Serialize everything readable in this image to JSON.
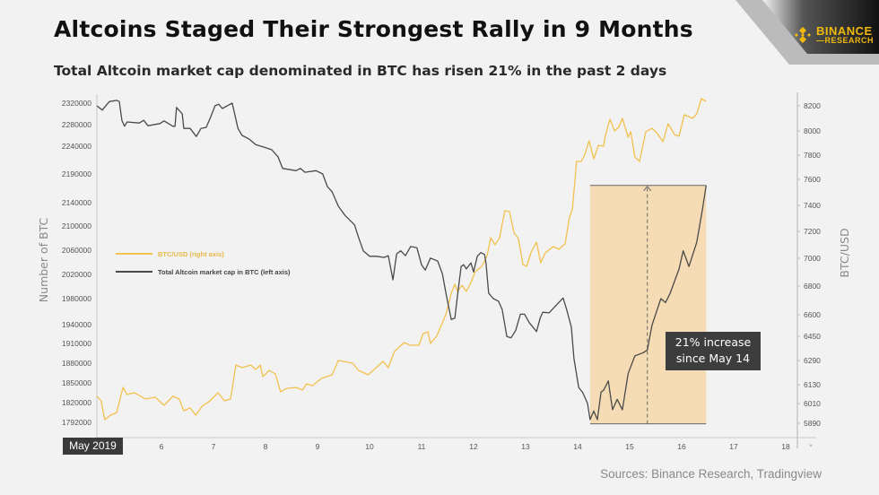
{
  "header": {
    "title": "Altcoins Staged Their Strongest Rally in 9 Months",
    "subtitle": "Total Altcoin market cap denominated in BTC has risen 21% in the past 2 days"
  },
  "logo": {
    "line1": "BINANCE",
    "line2": "RESEARCH",
    "color": "#f0b90b"
  },
  "source": "Sources: Binance Research, Tradingview",
  "chart_data": {
    "type": "line",
    "title": "",
    "x_month_label": "May 2019",
    "x_ticks": [
      "6",
      "7",
      "8",
      "9",
      "10",
      "11",
      "12",
      "13",
      "14",
      "15",
      "16",
      "17",
      "18"
    ],
    "x_extra_tick": "*",
    "ylabel_left": "Number of BTC",
    "ylabel_right": "BTC/USD",
    "y_left_ticks": [
      2320000,
      2280000,
      2240000,
      2190000,
      2140000,
      2100000,
      2060000,
      2020000,
      1980000,
      1940000,
      1910000,
      1880000,
      1850000,
      1820000,
      1792000
    ],
    "y_right_ticks": [
      8200,
      8000,
      7800,
      7600,
      7400,
      7200,
      7000,
      6800,
      6600,
      6450,
      6290,
      6130,
      6010,
      5890
    ],
    "grid": false,
    "legend_placement": "middle-left",
    "series": [
      {
        "name": "BTC/USD (right axis)",
        "axis": "right",
        "color": "#f2c14e",
        "points": [
          [
            4.76,
            6056
          ],
          [
            4.84,
            6027
          ],
          [
            4.91,
            5912
          ],
          [
            5.02,
            5939
          ],
          [
            5.14,
            5955
          ],
          [
            5.26,
            6113
          ],
          [
            5.34,
            6067
          ],
          [
            5.48,
            6079
          ],
          [
            5.69,
            6039
          ],
          [
            5.88,
            6050
          ],
          [
            6.05,
            5999
          ],
          [
            6.22,
            6056
          ],
          [
            6.34,
            6039
          ],
          [
            6.43,
            5966
          ],
          [
            6.55,
            5983
          ],
          [
            6.66,
            5939
          ],
          [
            6.78,
            5993
          ],
          [
            6.91,
            6021
          ],
          [
            7.09,
            6079
          ],
          [
            7.21,
            6027
          ],
          [
            7.33,
            6039
          ],
          [
            7.43,
            6260
          ],
          [
            7.55,
            6243
          ],
          [
            7.72,
            6260
          ],
          [
            7.81,
            6231
          ],
          [
            7.9,
            6260
          ],
          [
            7.95,
            6183
          ],
          [
            8.07,
            6225
          ],
          [
            8.19,
            6201
          ],
          [
            8.29,
            6084
          ],
          [
            8.41,
            6107
          ],
          [
            8.59,
            6112
          ],
          [
            8.71,
            6096
          ],
          [
            8.79,
            6136
          ],
          [
            8.9,
            6124
          ],
          [
            9.07,
            6171
          ],
          [
            9.28,
            6195
          ],
          [
            9.4,
            6290
          ],
          [
            9.5,
            6284
          ],
          [
            9.67,
            6272
          ],
          [
            9.79,
            6225
          ],
          [
            9.97,
            6195
          ],
          [
            10.09,
            6231
          ],
          [
            10.26,
            6284
          ],
          [
            10.36,
            6243
          ],
          [
            10.48,
            6349
          ],
          [
            10.66,
            6408
          ],
          [
            10.79,
            6391
          ],
          [
            10.95,
            6391
          ],
          [
            11.03,
            6469
          ],
          [
            11.12,
            6481
          ],
          [
            11.17,
            6403
          ],
          [
            11.29,
            6450
          ],
          [
            11.38,
            6525
          ],
          [
            11.47,
            6606
          ],
          [
            11.57,
            6750
          ],
          [
            11.64,
            6813
          ],
          [
            11.69,
            6763
          ],
          [
            11.78,
            6806
          ],
          [
            11.86,
            6763
          ],
          [
            11.95,
            6826
          ],
          [
            12.03,
            6903
          ],
          [
            12.16,
            6942
          ],
          [
            12.26,
            7020
          ],
          [
            12.33,
            7153
          ],
          [
            12.41,
            7100
          ],
          [
            12.5,
            7153
          ],
          [
            12.6,
            7359
          ],
          [
            12.69,
            7352
          ],
          [
            12.78,
            7187
          ],
          [
            12.86,
            7147
          ],
          [
            12.95,
            6955
          ],
          [
            13.02,
            6942
          ],
          [
            13.1,
            7040
          ],
          [
            13.21,
            7120
          ],
          [
            13.29,
            6968
          ],
          [
            13.38,
            7040
          ],
          [
            13.53,
            7087
          ],
          [
            13.64,
            7067
          ],
          [
            13.76,
            7107
          ],
          [
            13.84,
            7303
          ],
          [
            13.9,
            7372
          ],
          [
            13.98,
            7748
          ],
          [
            14.07,
            7748
          ],
          [
            14.14,
            7807
          ],
          [
            14.22,
            7918
          ],
          [
            14.31,
            7770
          ],
          [
            14.4,
            7881
          ],
          [
            14.5,
            7874
          ],
          [
            14.53,
            7956
          ],
          [
            14.62,
            8093
          ],
          [
            14.71,
            8000
          ],
          [
            14.79,
            8029
          ],
          [
            14.86,
            8100
          ],
          [
            14.97,
            7948
          ],
          [
            15.02,
            7993
          ],
          [
            15.1,
            7785
          ],
          [
            15.19,
            7748
          ],
          [
            15.31,
            7993
          ],
          [
            15.43,
            8021
          ],
          [
            15.52,
            7985
          ],
          [
            15.64,
            7911
          ],
          [
            15.74,
            8057
          ],
          [
            15.86,
            7970
          ],
          [
            15.95,
            7956
          ],
          [
            16.05,
            8129
          ],
          [
            16.21,
            8100
          ],
          [
            16.29,
            8136
          ],
          [
            16.38,
            8257
          ],
          [
            16.47,
            8236
          ]
        ]
      },
      {
        "name": "Total Altcoin market cap in BTC (left axis)",
        "axis": "left",
        "color": "#4a4a4a",
        "points": [
          [
            4.76,
            2315000
          ],
          [
            4.86,
            2307000
          ],
          [
            5.0,
            2323000
          ],
          [
            5.14,
            2325000
          ],
          [
            5.19,
            2323000
          ],
          [
            5.24,
            2288000
          ],
          [
            5.29,
            2277000
          ],
          [
            5.34,
            2285000
          ],
          [
            5.57,
            2283000
          ],
          [
            5.66,
            2288000
          ],
          [
            5.74,
            2278000
          ],
          [
            5.97,
            2282000
          ],
          [
            6.05,
            2287000
          ],
          [
            6.22,
            2277000
          ],
          [
            6.26,
            2277000
          ],
          [
            6.29,
            2312000
          ],
          [
            6.4,
            2300000
          ],
          [
            6.43,
            2273000
          ],
          [
            6.55,
            2273000
          ],
          [
            6.67,
            2258000
          ],
          [
            6.76,
            2273000
          ],
          [
            6.86,
            2275000
          ],
          [
            6.95,
            2295000
          ],
          [
            7.03,
            2315000
          ],
          [
            7.1,
            2318000
          ],
          [
            7.17,
            2310000
          ],
          [
            7.36,
            2320000
          ],
          [
            7.47,
            2273000
          ],
          [
            7.55,
            2260000
          ],
          [
            7.69,
            2253000
          ],
          [
            7.81,
            2243000
          ],
          [
            7.98,
            2238000
          ],
          [
            8.12,
            2233500
          ],
          [
            8.24,
            2221000
          ],
          [
            8.33,
            2200000
          ],
          [
            8.59,
            2196000
          ],
          [
            8.67,
            2200000
          ],
          [
            8.76,
            2193000
          ],
          [
            8.97,
            2196000
          ],
          [
            9.1,
            2190000
          ],
          [
            9.19,
            2168000
          ],
          [
            9.28,
            2159000
          ],
          [
            9.4,
            2134000
          ],
          [
            9.53,
            2118000
          ],
          [
            9.71,
            2102000
          ],
          [
            9.79,
            2081000
          ],
          [
            9.88,
            2059000
          ],
          [
            10.0,
            2050000
          ],
          [
            10.14,
            2050000
          ],
          [
            10.28,
            2048000
          ],
          [
            10.36,
            2051000
          ],
          [
            10.45,
            2011000
          ],
          [
            10.52,
            2054000
          ],
          [
            10.6,
            2059000
          ],
          [
            10.69,
            2051000
          ],
          [
            10.79,
            2066000
          ],
          [
            10.91,
            2064000
          ],
          [
            11.0,
            2036000
          ],
          [
            11.07,
            2027000
          ],
          [
            11.17,
            2047000
          ],
          [
            11.31,
            2042000
          ],
          [
            11.4,
            2021000
          ],
          [
            11.48,
            1984000
          ],
          [
            11.57,
            1948000
          ],
          [
            11.64,
            1950000
          ],
          [
            11.69,
            1984000
          ],
          [
            11.76,
            2033000
          ],
          [
            11.81,
            2036000
          ],
          [
            11.86,
            2029000
          ],
          [
            11.95,
            2039000
          ],
          [
            12.0,
            2024000
          ],
          [
            12.07,
            2050000
          ],
          [
            12.14,
            2056000
          ],
          [
            12.21,
            2053000
          ],
          [
            12.24,
            2038000
          ],
          [
            12.29,
            1989000
          ],
          [
            12.38,
            1980000
          ],
          [
            12.48,
            1976000
          ],
          [
            12.55,
            1963000
          ],
          [
            12.64,
            1921000
          ],
          [
            12.72,
            1919000
          ],
          [
            12.81,
            1931000
          ],
          [
            12.9,
            1956000
          ],
          [
            12.98,
            1956000
          ],
          [
            13.07,
            1943000
          ],
          [
            13.21,
            1929000
          ],
          [
            13.28,
            1950000
          ],
          [
            13.33,
            1959000
          ],
          [
            13.45,
            1958000
          ],
          [
            13.59,
            1970000
          ],
          [
            13.72,
            1981000
          ],
          [
            13.79,
            1963000
          ],
          [
            13.88,
            1936000
          ],
          [
            13.93,
            1887000
          ],
          [
            14.02,
            1843000
          ],
          [
            14.1,
            1835000
          ],
          [
            14.19,
            1819000
          ],
          [
            14.24,
            1796000
          ],
          [
            14.31,
            1808000
          ],
          [
            14.38,
            1796000
          ],
          [
            14.45,
            1836000
          ],
          [
            14.5,
            1839000
          ],
          [
            14.59,
            1853000
          ],
          [
            14.67,
            1810000
          ],
          [
            14.76,
            1825000
          ],
          [
            14.86,
            1810000
          ],
          [
            14.97,
            1864000
          ],
          [
            15.1,
            1891000
          ],
          [
            15.26,
            1896000
          ],
          [
            15.34,
            1900000
          ],
          [
            15.43,
            1939000
          ],
          [
            15.6,
            1980000
          ],
          [
            15.69,
            1974000
          ],
          [
            15.78,
            1989000
          ],
          [
            15.95,
            2029000
          ],
          [
            16.03,
            2059000
          ],
          [
            16.14,
            2033000
          ],
          [
            16.29,
            2073000
          ],
          [
            16.4,
            2129000
          ],
          [
            16.47,
            2170000
          ]
        ]
      }
    ],
    "highlight": {
      "start_day": 14.24,
      "end_day": 16.47,
      "low": 1790000,
      "high": 2170000,
      "arrow_day": 15.34,
      "fill": "#f5dcb5",
      "label_line1": "21%  increase",
      "label_line2": "since May 14"
    }
  }
}
